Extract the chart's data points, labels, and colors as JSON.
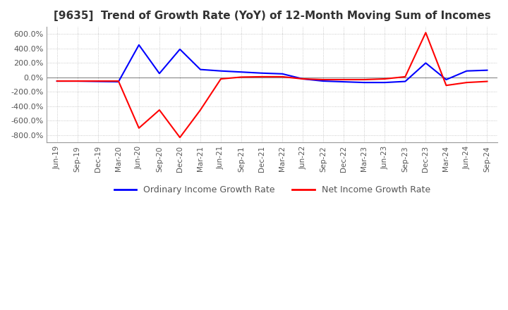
{
  "title": "[9635]  Trend of Growth Rate (YoY) of 12-Month Moving Sum of Incomes",
  "title_fontsize": 11,
  "ylim": [
    -900,
    700
  ],
  "yticks": [
    -800,
    -600,
    -400,
    -200,
    0,
    200,
    400,
    600
  ],
  "background_color": "#ffffff",
  "grid_color": "#bbbbbb",
  "ordinary_color": "#0000ff",
  "net_color": "#ff0000",
  "legend_labels": [
    "Ordinary Income Growth Rate",
    "Net Income Growth Rate"
  ],
  "x_labels": [
    "Jun-19",
    "Sep-19",
    "Dec-19",
    "Mar-20",
    "Jun-20",
    "Sep-20",
    "Dec-20",
    "Mar-21",
    "Jun-21",
    "Sep-21",
    "Dec-21",
    "Mar-22",
    "Jun-22",
    "Sep-22",
    "Dec-22",
    "Mar-23",
    "Jun-23",
    "Sep-23",
    "Dec-23",
    "Mar-24",
    "Jun-24",
    "Sep-24"
  ],
  "ordinary_y": [
    -50,
    -50,
    -55,
    -60,
    450,
    55,
    390,
    110,
    90,
    75,
    60,
    50,
    -20,
    -50,
    -60,
    -70,
    -70,
    -55,
    200,
    -30,
    90,
    100
  ],
  "net_y": [
    -50,
    -50,
    -50,
    -50,
    -700,
    -450,
    -830,
    -450,
    -20,
    5,
    10,
    10,
    -20,
    -30,
    -30,
    -30,
    -20,
    10,
    620,
    -110,
    -70,
    -55
  ]
}
